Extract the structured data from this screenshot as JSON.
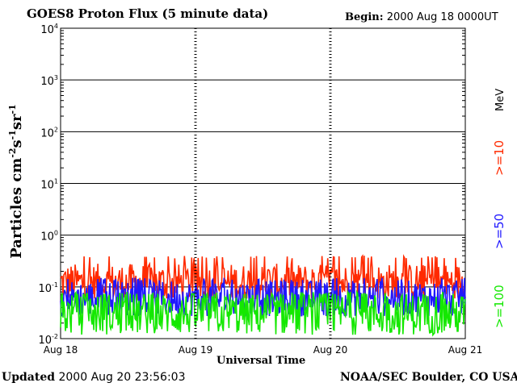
{
  "header": {
    "title": "GOES8 Proton Flux (5 minute data)",
    "begin_label": "Begin:",
    "begin_value": "2000 Aug 18 0000UT"
  },
  "footer": {
    "updated_label": "Updated",
    "updated_value": "2000 Aug 20 23:56:03",
    "credit": "NOAA/SEC Boulder, CO USA"
  },
  "legend": {
    "unit": "MeV",
    "channels": [
      {
        "label": ">=10",
        "color": "#ff2a00"
      },
      {
        "label": ">=50",
        "color": "#1f17ff"
      },
      {
        "label": ">=100",
        "color": "#14e800"
      }
    ]
  },
  "chart_data": {
    "type": "line",
    "title": "GOES8 Proton Flux (5 minute data)",
    "xlabel": "Universal Time",
    "ylabel": "Particles cm-2s-1sr-1",
    "yscale": "log",
    "ylim": [
      0.01,
      10000
    ],
    "x_ticks": [
      "Aug 18",
      "Aug 19",
      "Aug 20",
      "Aug 21"
    ],
    "y_ticks": [
      {
        "base": "10",
        "exp": "4"
      },
      {
        "base": "10",
        "exp": "3"
      },
      {
        "base": "10",
        "exp": "2"
      },
      {
        "base": "10",
        "exp": "1"
      },
      {
        "base": "10",
        "exp": "0"
      },
      {
        "base": "10",
        "exp": "-1"
      },
      {
        "base": "10",
        "exp": "-2"
      }
    ],
    "grid": true,
    "series": [
      {
        "name": ">=10 MeV",
        "color": "#ff2a00",
        "typical": 0.12,
        "range": [
          0.06,
          0.4
        ]
      },
      {
        "name": ">=50 MeV",
        "color": "#1f17ff",
        "typical": 0.06,
        "range": [
          0.025,
          0.15
        ]
      },
      {
        "name": ">=100 MeV",
        "color": "#14e800",
        "typical": 0.03,
        "range": [
          0.01,
          0.08
        ]
      }
    ]
  }
}
